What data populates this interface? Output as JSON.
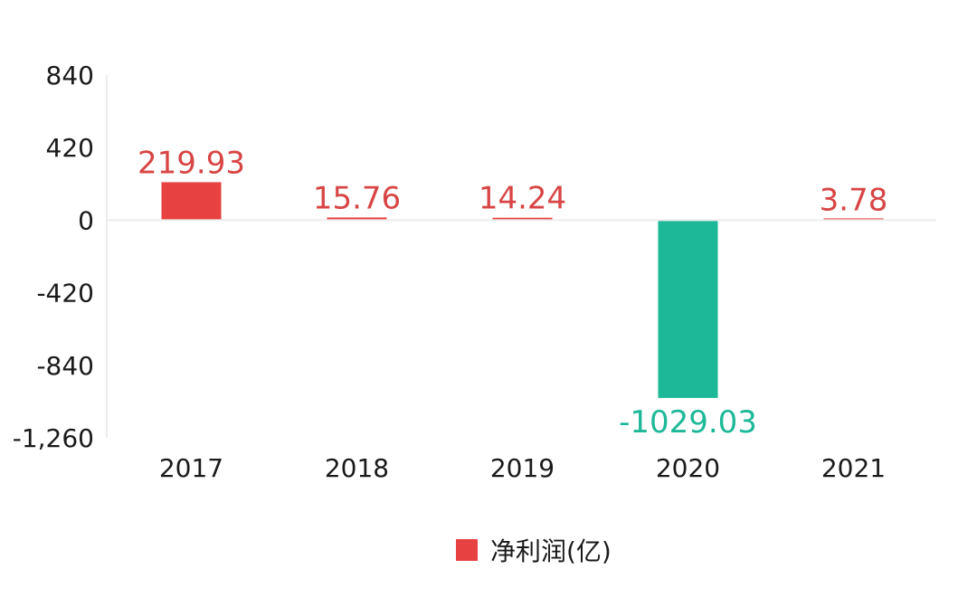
{
  "chart_data": {
    "type": "bar",
    "categories": [
      "2017",
      "2018",
      "2019",
      "2020",
      "2021"
    ],
    "series": [
      {
        "name": "净利润(亿)",
        "values": [
          219.93,
          15.76,
          14.24,
          -1029.03,
          3.78
        ]
      }
    ],
    "value_labels": [
      "219.93",
      "15.76",
      "14.24",
      "-1029.03",
      "3.78"
    ],
    "y_ticks": [
      840,
      420,
      0,
      -420,
      -840,
      -1260
    ],
    "y_tick_labels": [
      "840",
      "420",
      "0",
      "-420",
      "-840",
      "-1,260"
    ],
    "ylim": [
      -1260,
      840
    ],
    "title": "",
    "xlabel": "",
    "ylabel": "",
    "grid": false,
    "legend_position": "bottom-center",
    "colors": {
      "positive": "#e84142",
      "negative": "#1db897",
      "positive_label": "#d84545",
      "negative_label": "#1db897",
      "axis": "#ececec"
    }
  }
}
